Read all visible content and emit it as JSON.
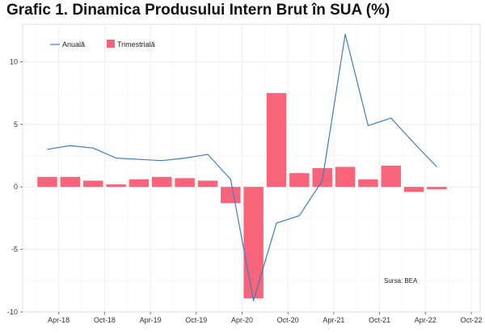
{
  "chart_data": {
    "type": "bar",
    "title": "Grafic 1. Dinamica Produsului Intern Brut în SUA (%)",
    "xlabel": "",
    "ylabel": "",
    "ylim": [
      -10,
      13
    ],
    "y_ticks": [
      -10,
      -5,
      0,
      5,
      10
    ],
    "y_tick_labels": [
      "-10",
      "-5",
      "0",
      "5",
      "10"
    ],
    "categories": [
      "2018Q1",
      "2018Q2",
      "2018Q3",
      "2018Q4",
      "2019Q1",
      "2019Q2",
      "2019Q3",
      "2019Q4",
      "2020Q1",
      "2020Q2",
      "2020Q3",
      "2020Q4",
      "2021Q1",
      "2021Q2",
      "2021Q3",
      "2021Q4",
      "2022Q1",
      "2022Q2"
    ],
    "x_ticks": [
      "Apr-18",
      "Oct-18",
      "Apr-19",
      "Oct-19",
      "Apr-20",
      "Oct-20",
      "Apr-21",
      "Oct-21",
      "Apr-22",
      "Oct-22"
    ],
    "series": [
      {
        "name": "Anuală",
        "kind": "line",
        "color": "#3d7cc9",
        "values": [
          3.0,
          3.3,
          3.1,
          2.3,
          2.2,
          2.1,
          2.3,
          2.6,
          0.6,
          -9.1,
          -2.9,
          -2.3,
          0.5,
          12.2,
          4.9,
          5.5,
          3.5,
          1.6
        ]
      },
      {
        "name": "Trimestrială",
        "kind": "bar",
        "color": "#f8657a",
        "values": [
          0.8,
          0.8,
          0.5,
          0.2,
          0.6,
          0.8,
          0.7,
          0.5,
          -1.3,
          -8.9,
          7.5,
          1.1,
          1.5,
          1.6,
          0.6,
          1.7,
          -0.4,
          -0.2
        ]
      }
    ],
    "legend_position": "top-left",
    "grid": true,
    "annotation": "Sursa: BEA"
  }
}
